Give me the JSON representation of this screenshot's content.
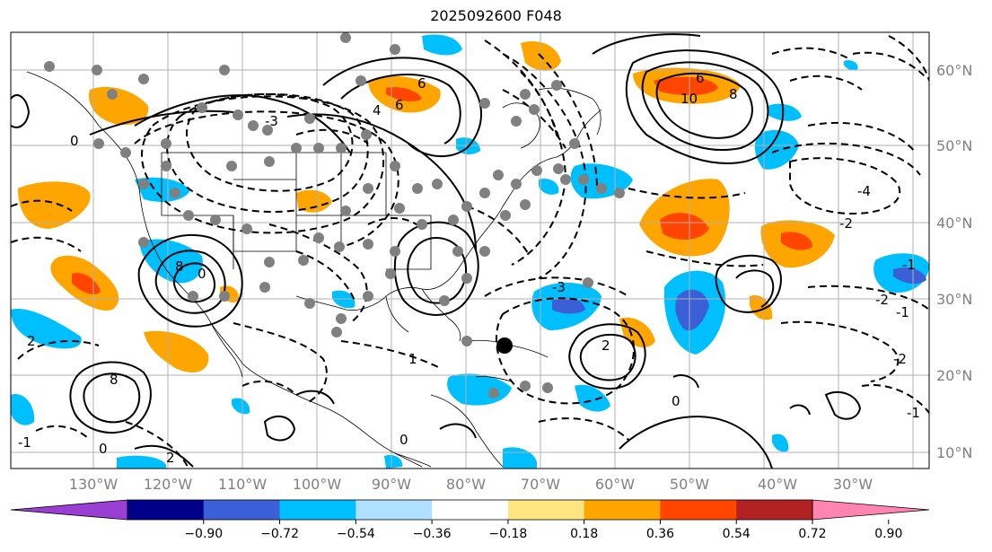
{
  "title": "2025092600 F048",
  "longitude_labels": [
    "130°W",
    "120°W",
    "110°W",
    "100°W",
    "90°W",
    "80°W",
    "70°W",
    "60°W",
    "50°W",
    "40°W",
    "30°W"
  ],
  "latitude_labels": [
    "60°N",
    "50°N",
    "40°N",
    "30°N",
    "20°N",
    "10°N"
  ],
  "colorbar": {
    "ticks": [
      "−0.90",
      "−0.72",
      "−0.54",
      "−0.36",
      "−0.18",
      "0.18",
      "0.36",
      "0.54",
      "0.72",
      "0.90"
    ],
    "colors": [
      "#9a3fd4",
      "#00008b",
      "#3a5fd6",
      "#00bfff",
      "#b0e0ff",
      "#ffffff",
      "#ffe680",
      "#ffa500",
      "#ff4500",
      "#b22222",
      "#ff85b0"
    ]
  },
  "contour_labels": [
    "6",
    "10",
    "8",
    "6",
    "6",
    "-3",
    "-4",
    "-2",
    "-1",
    "-2",
    "-1",
    "-2",
    "-1",
    "-3",
    "2",
    "8",
    "0",
    "0",
    "2",
    "0",
    "1",
    "0",
    "-1",
    "2",
    "0",
    "4",
    "8"
  ]
}
